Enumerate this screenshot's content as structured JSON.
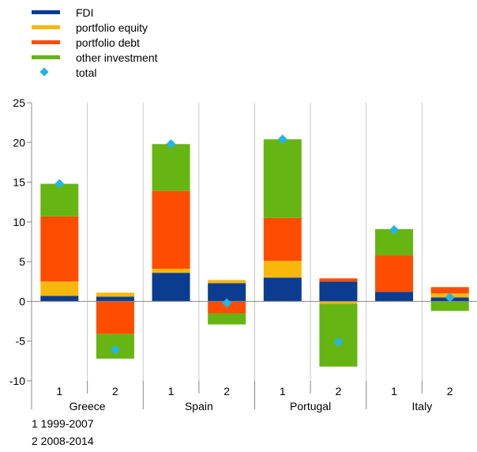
{
  "chart_data": {
    "type": "bar",
    "stacked": true,
    "groups": [
      "Greece",
      "Spain",
      "Portugal",
      "Italy"
    ],
    "categories": [
      "1",
      "2",
      "1",
      "2",
      "1",
      "2",
      "1",
      "2"
    ],
    "ylim": [
      -10,
      25
    ],
    "yticks": [
      25,
      20,
      15,
      10,
      5,
      0,
      -5,
      -10
    ],
    "grid": false,
    "legend_position": "top-left",
    "series": [
      {
        "name": "FDI",
        "color": "#0b3c8f",
        "values": [
          0.7,
          0.6,
          3.6,
          2.3,
          3.0,
          2.5,
          1.2,
          0.5
        ]
      },
      {
        "name": "portfolio equity",
        "color": "#f7b80b",
        "values": [
          1.8,
          0.5,
          0.5,
          0.4,
          2.1,
          -0.3,
          0.0,
          0.5
        ]
      },
      {
        "name": "portfolio debt",
        "color": "#ff4d00",
        "values": [
          8.2,
          -4.1,
          9.8,
          -1.5,
          5.4,
          0.4,
          4.6,
          0.8
        ]
      },
      {
        "name": "other investment",
        "color": "#66b512",
        "values": [
          4.1,
          -3.1,
          5.9,
          -1.4,
          9.9,
          -7.9,
          3.3,
          -1.2
        ]
      }
    ],
    "total": {
      "name": "total",
      "color": "#24b4e6",
      "values": [
        14.8,
        -6.1,
        19.8,
        -0.2,
        20.4,
        -5.1,
        9.0,
        0.5
      ]
    }
  },
  "footnotes": [
    "1 1999-2007",
    "2 2008-2014"
  ]
}
